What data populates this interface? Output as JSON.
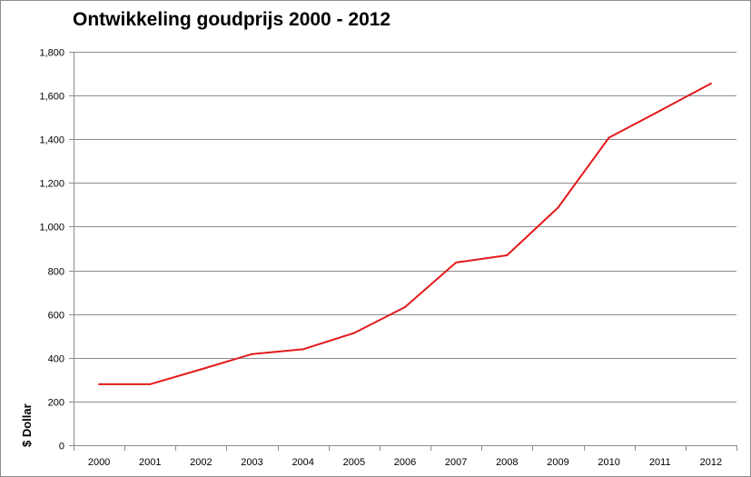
{
  "chart_data": {
    "type": "line",
    "title": "Ontwikkeling goudprijs 2000 - 2012",
    "ylabel": "$ Dollar",
    "xlabel": "",
    "categories": [
      "2000",
      "2001",
      "2002",
      "2003",
      "2004",
      "2005",
      "2006",
      "2007",
      "2008",
      "2009",
      "2010",
      "2011",
      "2012"
    ],
    "series": [
      {
        "values": [
          279,
          279,
          347,
          417,
          439,
          513,
          632,
          836,
          869,
          1087,
          1407,
          1530,
          1655
        ]
      }
    ],
    "ylim": [
      0,
      1800
    ],
    "yticks": [
      0,
      200,
      400,
      600,
      800,
      1000,
      1200,
      1400,
      1600,
      1800
    ],
    "ytick_labels": [
      "0",
      "200",
      "400",
      "600",
      "800",
      "1,000",
      "1,200",
      "1,400",
      "1,600",
      "1,800"
    ],
    "grid": true,
    "legend": "none",
    "colors": {
      "line": "#e31a1c",
      "grid": "#8c8c8c",
      "axis": "#8c8c8c"
    }
  }
}
